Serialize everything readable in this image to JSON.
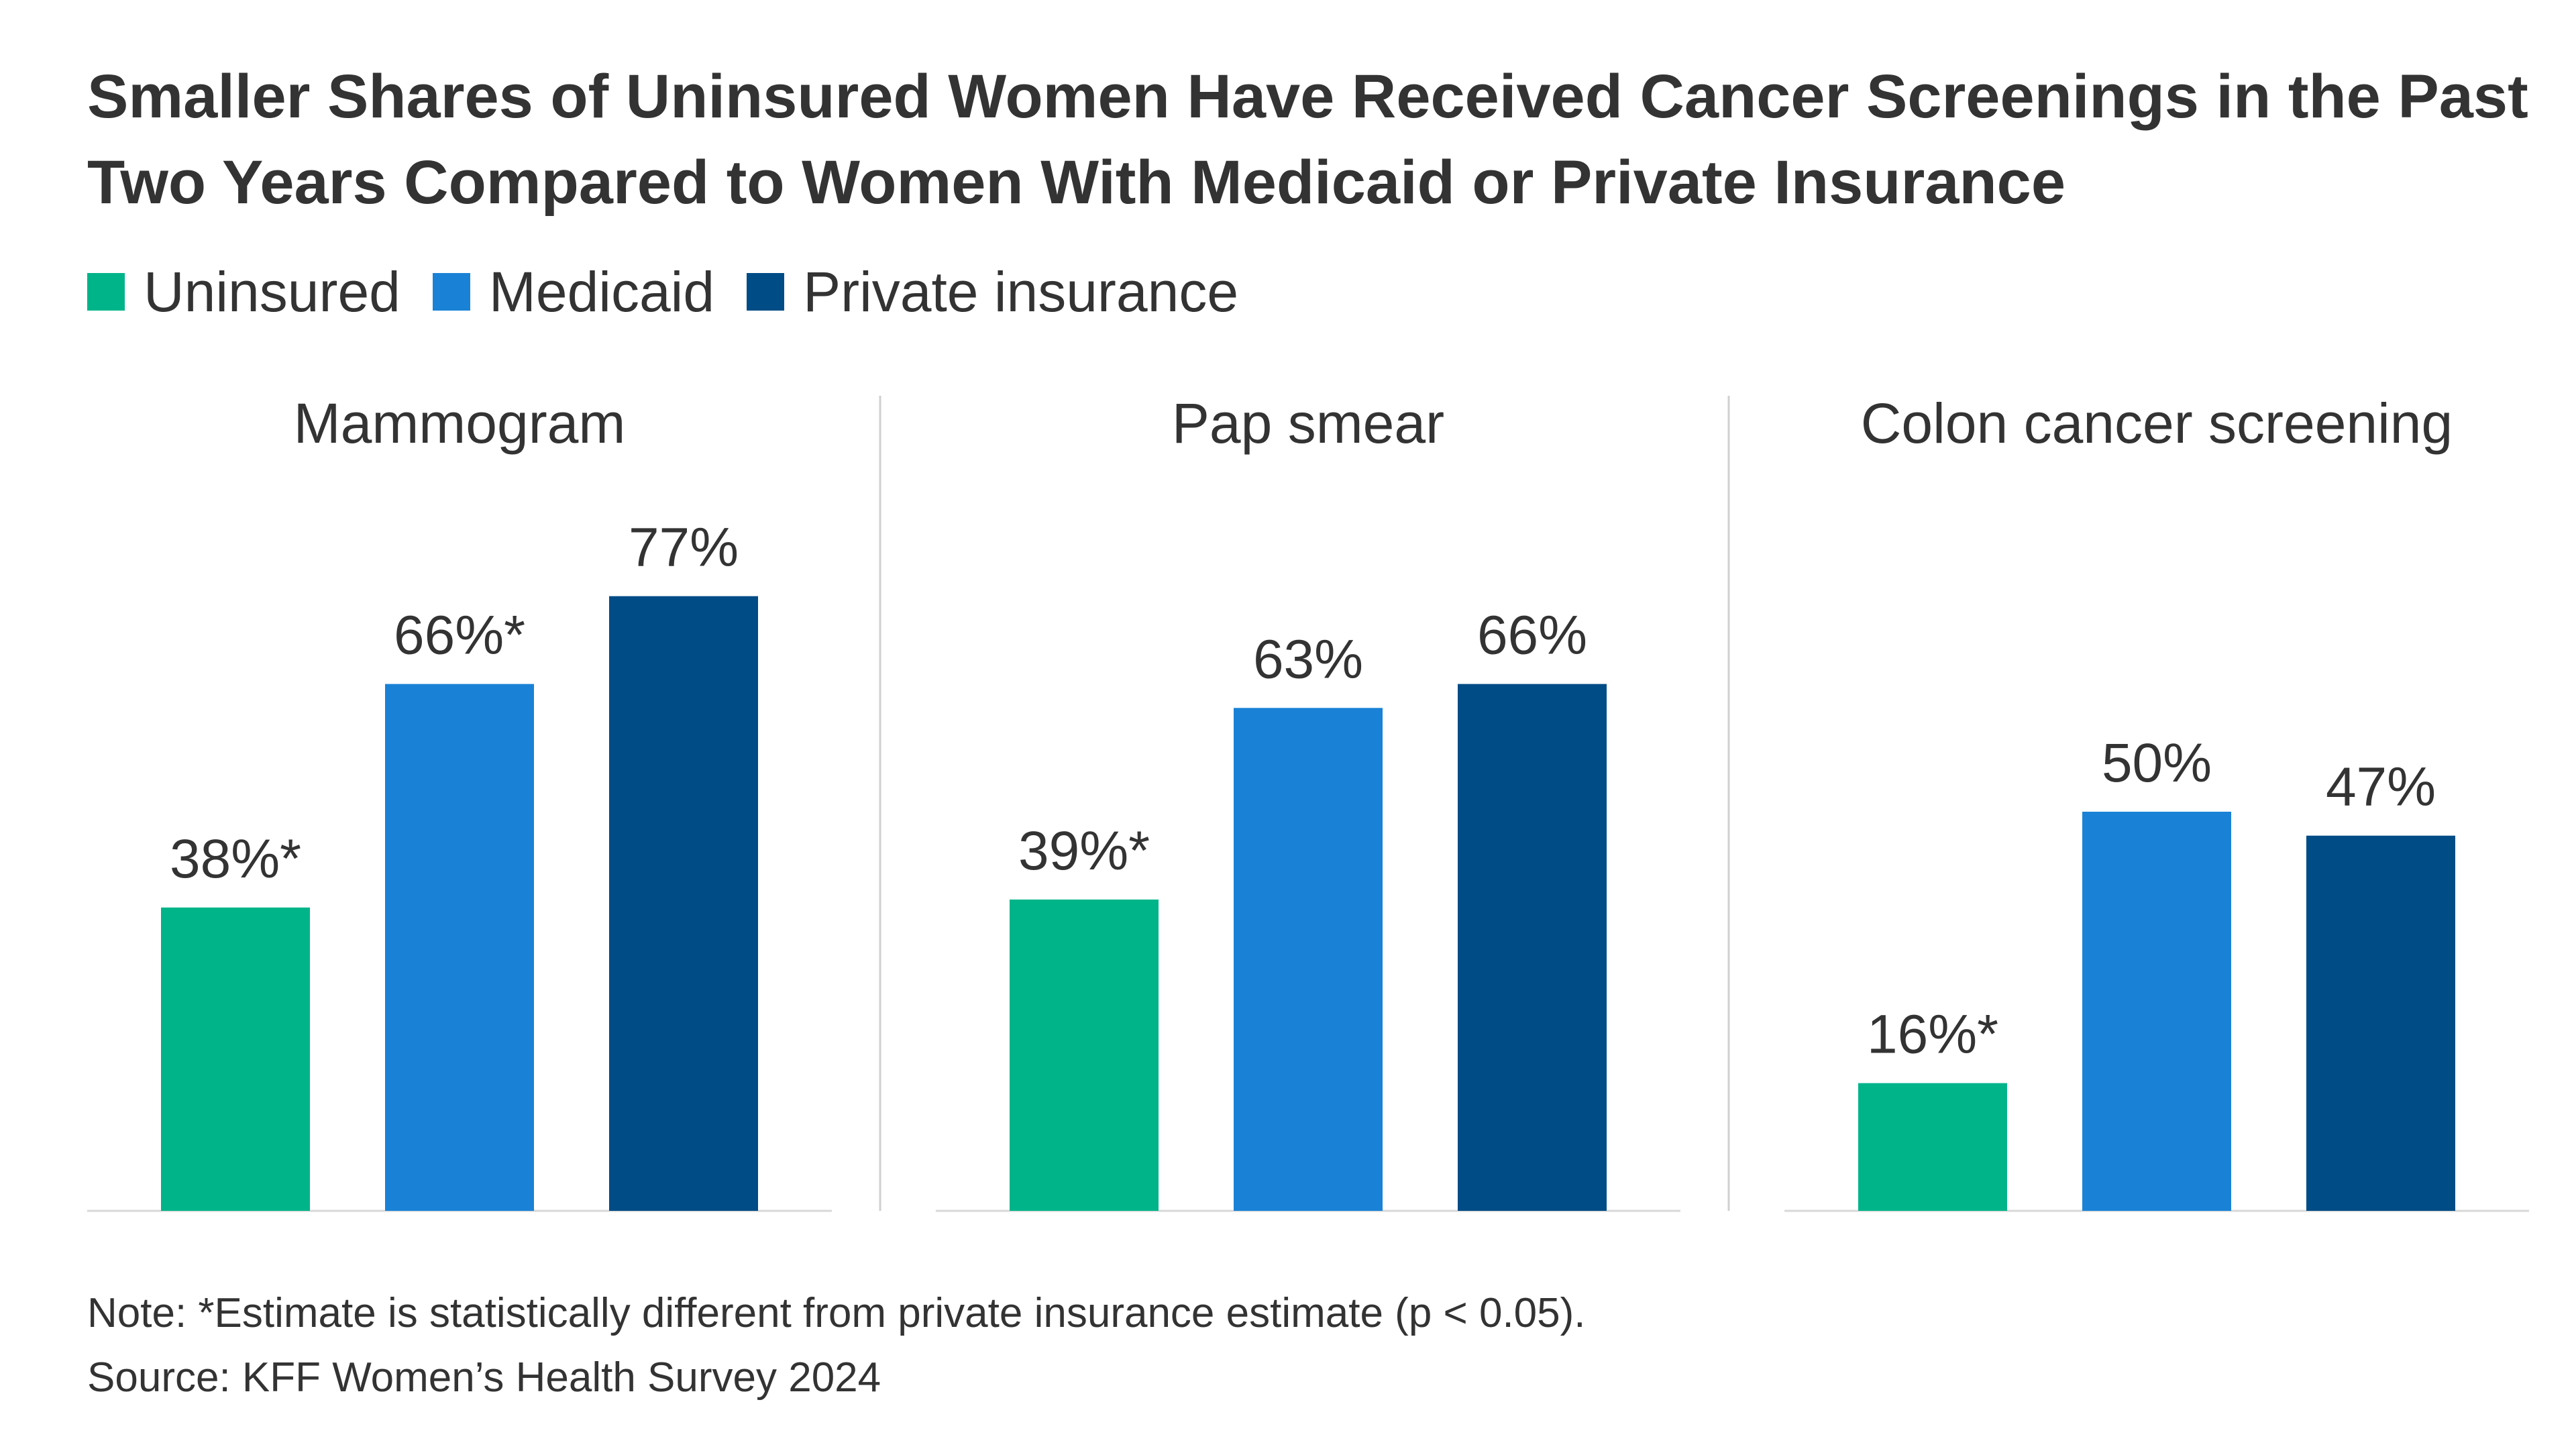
{
  "title": "Smaller Shares of Uninsured Women Have Received Cancer Screenings in the Past Two Years Compared to Women With Medicaid or Private Insurance",
  "legend": [
    {
      "label": "Uninsured",
      "color": "#00b48a"
    },
    {
      "label": "Medicaid",
      "color": "#1a82d6"
    },
    {
      "label": "Private insurance",
      "color": "#004c86"
    }
  ],
  "note": "Note: *Estimate is statistically different from private insurance estimate (p < 0.05).",
  "source": "Source: KFF Women’s Health Survey 2024",
  "chart_data": {
    "type": "bar",
    "ylim": [
      0,
      100
    ],
    "grid": false,
    "legend_position": "top-left",
    "panels": [
      {
        "title": "Mammogram",
        "categories": [
          "Uninsured",
          "Medicaid",
          "Private insurance"
        ],
        "values": [
          38,
          66,
          77
        ],
        "labels": [
          "38%*",
          "66%*",
          "77%"
        ]
      },
      {
        "title": "Pap smear",
        "categories": [
          "Uninsured",
          "Medicaid",
          "Private insurance"
        ],
        "values": [
          39,
          63,
          66
        ],
        "labels": [
          "39%*",
          "63%",
          "66%"
        ]
      },
      {
        "title": "Colon cancer screening",
        "categories": [
          "Uninsured",
          "Medicaid",
          "Private insurance"
        ],
        "values": [
          16,
          50,
          47
        ],
        "labels": [
          "16%*",
          "50%",
          "47%"
        ]
      }
    ]
  }
}
